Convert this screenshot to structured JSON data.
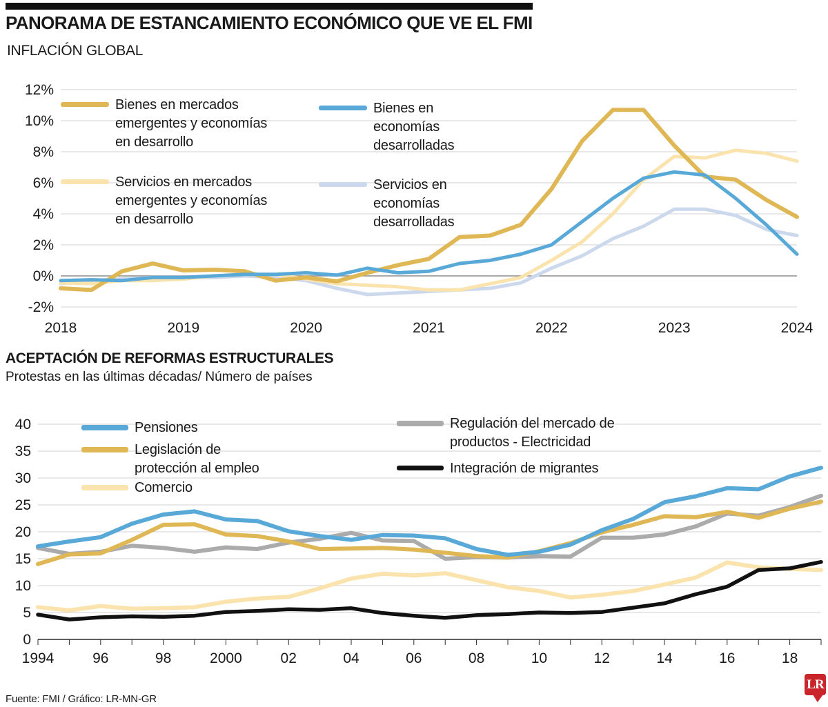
{
  "header": {
    "title": "PANORAMA DE ESTANCAMIENTO ECONÓMICO QUE VE EL FMI"
  },
  "footer": {
    "source": "Fuente: FMI / Gráfico: LR-MN-GR",
    "logo_text": "LR",
    "logo_color": "#c9252b"
  },
  "colors": {
    "gold": "#dfb755",
    "cream": "#fae3ad",
    "blue": "#58a9d7",
    "lavender": "#ccd8ec",
    "gray": "#ababab",
    "black_line": "#111111",
    "grid": "#d2d2d2",
    "text": "#1a1a1a"
  },
  "chart_data": [
    {
      "id": "inflacion",
      "type": "line",
      "title": "INFLACIÓN GLOBAL",
      "x_start": 2018,
      "x_step": 0.25,
      "xlim": [
        2018,
        2024
      ],
      "ylim": [
        -2,
        12
      ],
      "grid": "horizontal",
      "legend_position": "top-left-overlay",
      "yticks": [
        {
          "value": 12,
          "label": "12%"
        },
        {
          "value": 10,
          "label": "10%"
        },
        {
          "value": 8,
          "label": "8%"
        },
        {
          "value": 6,
          "label": "6%"
        },
        {
          "value": 4,
          "label": "4%"
        },
        {
          "value": 2,
          "label": "2%"
        },
        {
          "value": 0,
          "label": "0%"
        },
        {
          "value": -2,
          "label": "-2%"
        }
      ],
      "xticks": [
        {
          "value": 2018,
          "label": "2018"
        },
        {
          "value": 2019,
          "label": "2019"
        },
        {
          "value": 2020,
          "label": "2020"
        },
        {
          "value": 2021,
          "label": "2021"
        },
        {
          "value": 2022,
          "label": "2022"
        },
        {
          "value": 2023,
          "label": "2023"
        },
        {
          "value": 2024,
          "label": "2024"
        }
      ],
      "series": [
        {
          "name": "Bienes en mercados emergentes y economías en desarrollo",
          "color": "#dfb755",
          "values": [
            -0.8,
            -0.9,
            0.3,
            0.8,
            0.35,
            0.4,
            0.3,
            -0.3,
            -0.1,
            -0.35,
            0.2,
            0.7,
            1.1,
            2.5,
            2.6,
            3.3,
            5.6,
            8.7,
            10.7,
            10.7,
            8.4,
            6.4,
            6.2,
            4.9,
            3.8
          ]
        },
        {
          "name": "Bienes en economías desarrolladas",
          "color": "#58a9d7",
          "values": [
            -0.3,
            -0.25,
            -0.3,
            -0.1,
            -0.1,
            0.0,
            0.1,
            0.1,
            0.2,
            0.05,
            0.5,
            0.2,
            0.3,
            0.8,
            1.0,
            1.4,
            2.0,
            3.5,
            5.0,
            6.3,
            6.7,
            6.5,
            5.0,
            3.3,
            1.4
          ]
        },
        {
          "name": "Servicios en mercados emergentes y economías en desarrollo",
          "color": "#fae3ad",
          "values": [
            -0.45,
            -0.5,
            -0.3,
            -0.3,
            -0.2,
            0.0,
            0.1,
            0.1,
            -0.2,
            -0.5,
            -0.6,
            -0.7,
            -0.9,
            -0.9,
            -0.5,
            -0.1,
            1.0,
            2.2,
            4.0,
            6.2,
            7.7,
            7.6,
            8.1,
            7.9,
            7.4
          ]
        },
        {
          "name": "Servicios en economías desarrolladas",
          "color": "#ccd8ec",
          "values": [
            -0.5,
            -0.3,
            -0.2,
            -0.1,
            -0.1,
            -0.1,
            0.0,
            -0.1,
            -0.3,
            -0.8,
            -1.2,
            -1.1,
            -1.0,
            -0.9,
            -0.8,
            -0.45,
            0.5,
            1.3,
            2.4,
            3.2,
            4.3,
            4.3,
            3.9,
            3.0,
            2.6
          ]
        }
      ]
    },
    {
      "id": "reformas",
      "type": "line",
      "title": "ACEPTACIÓN DE REFORMAS ESTRUCTURALES",
      "subtitle": "Protestas en las últimas décadas/ Número de países",
      "x_start": 1994,
      "x_step": 1,
      "xlim": [
        1994,
        2019
      ],
      "ylim": [
        0,
        40
      ],
      "grid": "horizontal",
      "legend_position": "top-left-overlay",
      "yticks": [
        {
          "value": 40,
          "label": "40"
        },
        {
          "value": 35,
          "label": "35"
        },
        {
          "value": 30,
          "label": "30"
        },
        {
          "value": 25,
          "label": "25"
        },
        {
          "value": 20,
          "label": "20"
        },
        {
          "value": 15,
          "label": "15"
        },
        {
          "value": 10,
          "label": "10"
        },
        {
          "value": 5,
          "label": "5"
        },
        {
          "value": 0,
          "label": "0"
        }
      ],
      "xticks": [
        {
          "value": 1994,
          "label": "1994"
        },
        {
          "value": 1996,
          "label": "96"
        },
        {
          "value": 1998,
          "label": "98"
        },
        {
          "value": 2000,
          "label": "2000"
        },
        {
          "value": 2002,
          "label": "02"
        },
        {
          "value": 2004,
          "label": "04"
        },
        {
          "value": 2006,
          "label": "06"
        },
        {
          "value": 2008,
          "label": "08"
        },
        {
          "value": 2010,
          "label": "10"
        },
        {
          "value": 2012,
          "label": "12"
        },
        {
          "value": 2014,
          "label": "14"
        },
        {
          "value": 2016,
          "label": "16"
        },
        {
          "value": 2018,
          "label": "18"
        }
      ],
      "series": [
        {
          "name": "Pensiones",
          "color": "#58a9d7",
          "values": [
            17.3,
            18.2,
            19.0,
            21.5,
            23.2,
            23.8,
            22.3,
            22.0,
            20.1,
            19.2,
            18.5,
            19.4,
            19.3,
            18.8,
            16.8,
            15.7,
            16.3,
            17.6,
            20.3,
            22.4,
            25.5,
            26.6,
            28.1,
            27.9,
            30.3,
            31.9
          ]
        },
        {
          "name": "Legislación de protección al empleo",
          "color": "#dfb755",
          "values": [
            14.0,
            15.8,
            16.0,
            18.5,
            21.3,
            21.4,
            19.5,
            19.2,
            18.2,
            16.8,
            16.9,
            17.0,
            16.7,
            16.1,
            15.5,
            15.2,
            16.4,
            17.9,
            19.9,
            21.3,
            22.9,
            22.7,
            23.7,
            22.6,
            24.3,
            25.6
          ]
        },
        {
          "name": "Comercio",
          "color": "#fae3ad",
          "values": [
            6.0,
            5.4,
            6.2,
            5.7,
            5.8,
            6.0,
            7.0,
            7.6,
            7.9,
            9.5,
            11.3,
            12.2,
            11.9,
            12.3,
            11.0,
            9.7,
            9.0,
            7.8,
            8.3,
            9.0,
            10.2,
            11.5,
            14.3,
            13.4,
            13.1,
            12.9
          ]
        },
        {
          "name": "Regulación del mercado de productos - Electricidad",
          "color": "#ababab",
          "values": [
            17.0,
            15.9,
            16.3,
            17.4,
            17.0,
            16.3,
            17.1,
            16.8,
            18.0,
            18.7,
            19.8,
            18.4,
            18.3,
            15.0,
            15.3,
            15.2,
            15.5,
            15.4,
            18.9,
            18.9,
            19.5,
            21.0,
            23.4,
            23.0,
            24.6,
            26.7
          ]
        },
        {
          "name": "Integración de migrantes",
          "color": "#111111",
          "values": [
            4.6,
            3.7,
            4.1,
            4.3,
            4.2,
            4.4,
            5.1,
            5.3,
            5.6,
            5.5,
            5.8,
            4.9,
            4.4,
            4.0,
            4.5,
            4.7,
            5.0,
            4.9,
            5.1,
            5.9,
            6.7,
            8.4,
            9.8,
            12.9,
            13.2,
            14.4
          ]
        }
      ]
    }
  ]
}
